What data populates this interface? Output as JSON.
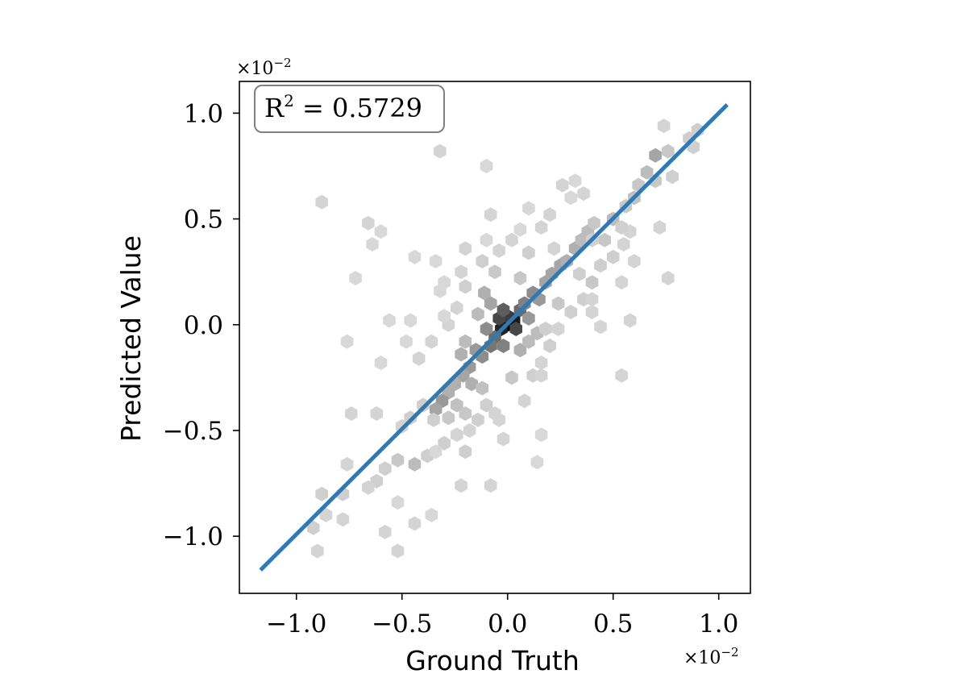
{
  "chart_data": {
    "type": "hexbin",
    "xlabel": "Ground Truth",
    "ylabel": "Predicted Value",
    "x_multiplier": "×10",
    "x_multiplier_exp": "−2",
    "y_multiplier": "×10",
    "y_multiplier_exp": "−2",
    "xlim": [
      -1.27,
      1.15
    ],
    "ylim": [
      -1.27,
      1.15
    ],
    "xticks": [
      -1.0,
      -0.5,
      0.0,
      0.5,
      1.0
    ],
    "yticks": [
      -1.0,
      -0.5,
      0.0,
      0.5,
      1.0
    ],
    "xtick_labels": [
      "−1.0",
      "−0.5",
      "0.0",
      "0.5",
      "1.0"
    ],
    "ytick_labels": [
      "−1.0",
      "−0.5",
      "0.0",
      "0.5",
      "1.0"
    ],
    "annotation": {
      "text_prefix": "R",
      "superscript": "2",
      "text_suffix": " = 0.5729"
    },
    "fit_line": {
      "x": [
        -1.17,
        1.04
      ],
      "y": [
        -1.16,
        1.04
      ],
      "color": "#2c7bb6"
    },
    "hexbins": [
      {
        "x": 0.0,
        "y": 0.0,
        "d": 1.0
      },
      {
        "x": 0.03,
        "y": 0.02,
        "d": 0.9
      },
      {
        "x": -0.03,
        "y": -0.02,
        "d": 0.85
      },
      {
        "x": 0.0,
        "y": 0.04,
        "d": 0.75
      },
      {
        "x": -0.04,
        "y": 0.03,
        "d": 0.7
      },
      {
        "x": 0.04,
        "y": -0.02,
        "d": 0.7
      },
      {
        "x": -0.02,
        "y": 0.07,
        "d": 0.6
      },
      {
        "x": 0.06,
        "y": 0.07,
        "d": 0.55
      },
      {
        "x": -0.06,
        "y": -0.06,
        "d": 0.55
      },
      {
        "x": -0.08,
        "y": -0.1,
        "d": 0.5
      },
      {
        "x": 0.08,
        "y": 0.1,
        "d": 0.45
      },
      {
        "x": -0.1,
        "y": -0.02,
        "d": 0.4
      },
      {
        "x": 0.1,
        "y": 0.03,
        "d": 0.35
      },
      {
        "x": -0.02,
        "y": -0.1,
        "d": 0.45
      },
      {
        "x": -0.12,
        "y": -0.15,
        "d": 0.4
      },
      {
        "x": 0.12,
        "y": 0.15,
        "d": 0.4
      },
      {
        "x": 0.15,
        "y": 0.12,
        "d": 0.35
      },
      {
        "x": -0.15,
        "y": -0.12,
        "d": 0.35
      },
      {
        "x": 0.18,
        "y": 0.2,
        "d": 0.3
      },
      {
        "x": -0.18,
        "y": -0.2,
        "d": 0.35
      },
      {
        "x": -0.21,
        "y": -0.24,
        "d": 0.3
      },
      {
        "x": 0.21,
        "y": 0.24,
        "d": 0.3
      },
      {
        "x": 0.25,
        "y": 0.28,
        "d": 0.3
      },
      {
        "x": -0.25,
        "y": -0.28,
        "d": 0.25
      },
      {
        "x": 0.28,
        "y": 0.3,
        "d": 0.25
      },
      {
        "x": -0.28,
        "y": -0.32,
        "d": 0.25
      },
      {
        "x": -0.31,
        "y": -0.36,
        "d": 0.35
      },
      {
        "x": -0.34,
        "y": -0.4,
        "d": 0.3
      },
      {
        "x": 0.32,
        "y": 0.36,
        "d": 0.25
      },
      {
        "x": 0.35,
        "y": 0.4,
        "d": 0.2
      },
      {
        "x": 0.38,
        "y": 0.44,
        "d": 0.2
      },
      {
        "x": 0.41,
        "y": 0.48,
        "d": 0.15
      },
      {
        "x": -0.08,
        "y": 0.1,
        "d": 0.3
      },
      {
        "x": -0.11,
        "y": 0.15,
        "d": 0.25
      },
      {
        "x": 0.06,
        "y": -0.12,
        "d": 0.25
      },
      {
        "x": 0.1,
        "y": -0.08,
        "d": 0.2
      },
      {
        "x": -0.14,
        "y": 0.05,
        "d": 0.2
      },
      {
        "x": 0.14,
        "y": -0.04,
        "d": 0.2
      },
      {
        "x": -0.2,
        "y": -0.08,
        "d": 0.2
      },
      {
        "x": -0.22,
        "y": -0.14,
        "d": 0.25
      },
      {
        "x": -0.17,
        "y": -0.28,
        "d": 0.25
      },
      {
        "x": -0.12,
        "y": -0.3,
        "d": 0.18
      },
      {
        "x": -0.24,
        "y": -0.38,
        "d": 0.18
      },
      {
        "x": -0.2,
        "y": -0.42,
        "d": 0.15
      },
      {
        "x": -0.28,
        "y": -0.44,
        "d": 0.15
      },
      {
        "x": -0.35,
        "y": -0.45,
        "d": 0.12
      },
      {
        "x": -0.4,
        "y": -0.38,
        "d": 0.12
      },
      {
        "x": -0.46,
        "y": -0.44,
        "d": 0.12
      },
      {
        "x": -0.5,
        "y": -0.48,
        "d": 0.1
      },
      {
        "x": -0.1,
        "y": -0.38,
        "d": 0.12
      },
      {
        "x": -0.06,
        "y": -0.42,
        "d": 0.1
      },
      {
        "x": -0.14,
        "y": -0.45,
        "d": 0.12
      },
      {
        "x": -0.18,
        "y": -0.5,
        "d": 0.1
      },
      {
        "x": -0.24,
        "y": -0.52,
        "d": 0.1
      },
      {
        "x": -0.3,
        "y": -0.56,
        "d": 0.12
      },
      {
        "x": -0.38,
        "y": -0.62,
        "d": 0.12
      },
      {
        "x": -0.44,
        "y": -0.66,
        "d": 0.2
      },
      {
        "x": -0.52,
        "y": -0.64,
        "d": 0.15
      },
      {
        "x": -0.62,
        "y": -0.74,
        "d": 0.12
      },
      {
        "x": -0.58,
        "y": -0.68,
        "d": 0.12
      },
      {
        "x": -0.66,
        "y": -0.77,
        "d": 0.1
      },
      {
        "x": -0.78,
        "y": -0.8,
        "d": 0.12
      },
      {
        "x": -0.88,
        "y": -0.8,
        "d": 0.12
      },
      {
        "x": -0.92,
        "y": -0.96,
        "d": 0.12
      },
      {
        "x": -0.86,
        "y": -0.9,
        "d": 0.1
      },
      {
        "x": -0.78,
        "y": -0.92,
        "d": 0.1
      },
      {
        "x": -0.76,
        "y": -0.66,
        "d": 0.1
      },
      {
        "x": -0.58,
        "y": -0.98,
        "d": 0.1
      },
      {
        "x": -0.44,
        "y": -0.94,
        "d": 0.1
      },
      {
        "x": -0.36,
        "y": -0.9,
        "d": 0.08
      },
      {
        "x": -0.52,
        "y": -0.84,
        "d": 0.08
      },
      {
        "x": -0.9,
        "y": -1.07,
        "d": 0.1
      },
      {
        "x": -0.52,
        "y": -1.07,
        "d": 0.1
      },
      {
        "x": -0.2,
        "y": -0.6,
        "d": 0.12
      },
      {
        "x": -0.22,
        "y": -0.76,
        "d": 0.1
      },
      {
        "x": -0.08,
        "y": -0.76,
        "d": 0.1
      },
      {
        "x": 0.14,
        "y": -0.65,
        "d": 0.08
      },
      {
        "x": -0.34,
        "y": -0.6,
        "d": 0.08
      },
      {
        "x": 0.16,
        "y": -0.52,
        "d": 0.08
      },
      {
        "x": -0.62,
        "y": -0.42,
        "d": 0.1
      },
      {
        "x": -0.74,
        "y": -0.42,
        "d": 0.1
      },
      {
        "x": -0.02,
        "y": -0.54,
        "d": 0.1
      },
      {
        "x": -0.04,
        "y": -0.45,
        "d": 0.1
      },
      {
        "x": 0.08,
        "y": -0.36,
        "d": 0.1
      },
      {
        "x": 0.02,
        "y": -0.25,
        "d": 0.15
      },
      {
        "x": 0.12,
        "y": -0.24,
        "d": 0.12
      },
      {
        "x": 0.16,
        "y": -0.18,
        "d": 0.1
      },
      {
        "x": 0.2,
        "y": -0.1,
        "d": 0.12
      },
      {
        "x": 0.24,
        "y": -0.02,
        "d": 0.1
      },
      {
        "x": 0.3,
        "y": 0.06,
        "d": 0.12
      },
      {
        "x": 0.36,
        "y": 0.12,
        "d": 0.12
      },
      {
        "x": 0.4,
        "y": 0.2,
        "d": 0.15
      },
      {
        "x": 0.44,
        "y": 0.28,
        "d": 0.12
      },
      {
        "x": 0.5,
        "y": 0.32,
        "d": 0.12
      },
      {
        "x": 0.55,
        "y": 0.38,
        "d": 0.1
      },
      {
        "x": 0.46,
        "y": 0.4,
        "d": 0.15
      },
      {
        "x": 0.5,
        "y": 0.5,
        "d": 0.2
      },
      {
        "x": 0.56,
        "y": 0.56,
        "d": 0.15
      },
      {
        "x": 0.6,
        "y": 0.6,
        "d": 0.18
      },
      {
        "x": 0.62,
        "y": 0.66,
        "d": 0.15
      },
      {
        "x": 0.66,
        "y": 0.72,
        "d": 0.2
      },
      {
        "x": 0.7,
        "y": 0.68,
        "d": 0.15
      },
      {
        "x": 0.7,
        "y": 0.8,
        "d": 0.3
      },
      {
        "x": 0.76,
        "y": 0.82,
        "d": 0.15
      },
      {
        "x": 0.78,
        "y": 0.7,
        "d": 0.12
      },
      {
        "x": 0.86,
        "y": 0.88,
        "d": 0.12
      },
      {
        "x": 0.9,
        "y": 0.92,
        "d": 0.12
      },
      {
        "x": 0.88,
        "y": 0.84,
        "d": 0.12
      },
      {
        "x": 0.74,
        "y": 0.94,
        "d": 0.1
      },
      {
        "x": 0.58,
        "y": 0.44,
        "d": 0.1
      },
      {
        "x": 0.54,
        "y": 0.46,
        "d": 0.12
      },
      {
        "x": 0.72,
        "y": 0.46,
        "d": 0.1
      },
      {
        "x": 0.76,
        "y": 0.22,
        "d": 0.1
      },
      {
        "x": 0.54,
        "y": 0.2,
        "d": 0.1
      },
      {
        "x": 0.6,
        "y": 0.3,
        "d": 0.1
      },
      {
        "x": 0.34,
        "y": 0.24,
        "d": 0.12
      },
      {
        "x": 0.4,
        "y": 0.06,
        "d": 0.1
      },
      {
        "x": 0.58,
        "y": 0.02,
        "d": 0.1
      },
      {
        "x": 0.44,
        "y": -0.01,
        "d": 0.1
      },
      {
        "x": 0.18,
        "y": -0.02,
        "d": 0.12
      },
      {
        "x": 0.24,
        "y": 0.1,
        "d": 0.15
      },
      {
        "x": 0.22,
        "y": 0.36,
        "d": 0.1
      },
      {
        "x": 0.1,
        "y": 0.34,
        "d": 0.12
      },
      {
        "x": 0.06,
        "y": 0.22,
        "d": 0.15
      },
      {
        "x": -0.06,
        "y": 0.25,
        "d": 0.15
      },
      {
        "x": -0.12,
        "y": 0.3,
        "d": 0.12
      },
      {
        "x": -0.04,
        "y": 0.35,
        "d": 0.1
      },
      {
        "x": 0.02,
        "y": 0.4,
        "d": 0.1
      },
      {
        "x": 0.06,
        "y": 0.45,
        "d": 0.08
      },
      {
        "x": 0.16,
        "y": 0.46,
        "d": 0.1
      },
      {
        "x": 0.2,
        "y": 0.52,
        "d": 0.1
      },
      {
        "x": 0.3,
        "y": 0.6,
        "d": 0.08
      },
      {
        "x": 0.36,
        "y": 0.62,
        "d": 0.1
      },
      {
        "x": 0.4,
        "y": 0.4,
        "d": 0.12
      },
      {
        "x": -0.2,
        "y": 0.18,
        "d": 0.12
      },
      {
        "x": -0.24,
        "y": 0.08,
        "d": 0.1
      },
      {
        "x": -0.28,
        "y": 0.0,
        "d": 0.1
      },
      {
        "x": -0.32,
        "y": 0.16,
        "d": 0.08
      },
      {
        "x": -0.3,
        "y": 0.04,
        "d": 0.08
      },
      {
        "x": -0.36,
        "y": -0.08,
        "d": 0.1
      },
      {
        "x": -0.42,
        "y": -0.16,
        "d": 0.1
      },
      {
        "x": -0.48,
        "y": -0.08,
        "d": 0.08
      },
      {
        "x": -0.56,
        "y": 0.02,
        "d": 0.08
      },
      {
        "x": -0.6,
        "y": -0.18,
        "d": 0.08
      },
      {
        "x": -0.76,
        "y": -0.08,
        "d": 0.08
      },
      {
        "x": -0.46,
        "y": 0.02,
        "d": 0.08
      },
      {
        "x": -0.64,
        "y": 0.38,
        "d": 0.08
      },
      {
        "x": -0.66,
        "y": 0.48,
        "d": 0.1
      },
      {
        "x": -0.72,
        "y": 0.22,
        "d": 0.08
      },
      {
        "x": -0.88,
        "y": 0.58,
        "d": 0.1
      },
      {
        "x": -0.6,
        "y": 0.44,
        "d": 0.08
      },
      {
        "x": -0.2,
        "y": 0.36,
        "d": 0.1
      },
      {
        "x": -0.22,
        "y": 0.25,
        "d": 0.1
      },
      {
        "x": -0.34,
        "y": 0.3,
        "d": 0.08
      },
      {
        "x": -0.44,
        "y": 0.32,
        "d": 0.08
      },
      {
        "x": -0.1,
        "y": 0.4,
        "d": 0.08
      },
      {
        "x": -0.08,
        "y": 0.52,
        "d": 0.1
      },
      {
        "x": 0.1,
        "y": 0.55,
        "d": 0.08
      },
      {
        "x": 0.26,
        "y": 0.66,
        "d": 0.1
      },
      {
        "x": 0.32,
        "y": 0.68,
        "d": 0.08
      },
      {
        "x": -0.3,
        "y": 0.2,
        "d": 0.08
      },
      {
        "x": -0.32,
        "y": 0.82,
        "d": 0.1
      },
      {
        "x": -0.1,
        "y": 0.75,
        "d": 0.08
      },
      {
        "x": 0.4,
        "y": 0.12,
        "d": 0.1
      },
      {
        "x": 0.54,
        "y": -0.24,
        "d": 0.1
      },
      {
        "x": 0.16,
        "y": -0.24,
        "d": 0.1
      }
    ]
  }
}
